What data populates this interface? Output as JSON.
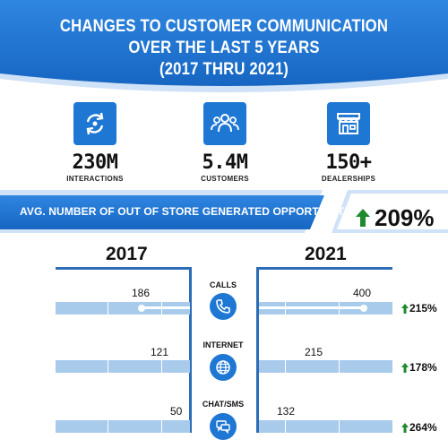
{
  "header": {
    "title_lines": [
      "CHANGES TO CUSTOMER COMMUNICATION",
      "OVER THE LAST 5 YEARS",
      "(2017 THRU 2021)"
    ]
  },
  "stats": [
    {
      "value": "230M",
      "label": "INTERACTIONS",
      "icon": "refresh-icon"
    },
    {
      "value": "5.4M",
      "label": "CUSTOMERS",
      "icon": "group-users-icon"
    },
    {
      "value": "150+",
      "label": "DEALERSHIPS",
      "icon": "storefront-icon"
    }
  ],
  "opportunities": {
    "label": "AVG. NUMBER OF OUT OF STORE GENERATED OPPORTUNITIES",
    "change": "209%"
  },
  "years": {
    "left": "2017",
    "right": "2021"
  },
  "channels": [
    {
      "name": "CALLS",
      "icon": "phone-icon",
      "value_2017": "186",
      "value_2021": "400",
      "change": "215%"
    },
    {
      "name": "INTERNET",
      "icon": "globe-icon",
      "value_2017": "121",
      "value_2021": "215",
      "change": "178%"
    },
    {
      "name": "CHAT/SMS",
      "icon": "chat-icon",
      "value_2017": "50",
      "value_2021": "132",
      "change": "264%"
    }
  ],
  "colors": {
    "primary_blue": "#1f77d4",
    "light_blue": "#a8cbec",
    "arrow_green": "#1e8a2e"
  }
}
